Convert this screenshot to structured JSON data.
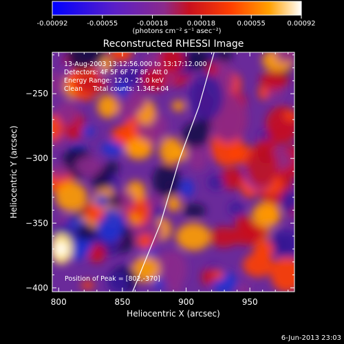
{
  "colorbar": {
    "tick_labels": [
      "-0.00092",
      "-0.00055",
      "-0.00018",
      "0.00018",
      "0.00055",
      "0.00092"
    ],
    "tick_values": [
      -0.00092,
      -0.00055,
      -0.00018,
      0.00018,
      0.00055,
      0.00092
    ],
    "range": [
      -0.00092,
      0.00092
    ],
    "units_label": "(photons cm⁻² s⁻¹ asec⁻²)",
    "colors": [
      "#0000ff",
      "#5a1fc8",
      "#8b2a8b",
      "#c8101e",
      "#ff4000",
      "#ffa000",
      "#ffffff"
    ]
  },
  "chart_data": {
    "type": "heatmap",
    "title": "Reconstructed RHESSI Image",
    "xlabel": "Heliocentric X (arcsec)",
    "ylabel": "Heliocentric Y (arcsec)",
    "xlim": [
      795,
      985
    ],
    "ylim": [
      -403,
      -218
    ],
    "x_ticks": [
      800,
      850,
      900,
      950
    ],
    "y_ticks": [
      -250,
      -300,
      -350,
      -400
    ],
    "x_tick_labels": [
      "800",
      "850",
      "900",
      "950"
    ],
    "y_tick_labels": [
      "-250",
      "-300",
      "-350",
      "-400"
    ],
    "annotations": [
      "13-Aug-2003 13:12:56.000 to 13:17:12.000",
      "Detectors: 4F 5F 6F 7F 8F, Att 0",
      "Energy Range: 12.0 - 25.0 keV",
      "Clean     Total counts: 1.34E+04"
    ],
    "peak_label": "Position of Peak = [802,-370]",
    "peak": [
      802,
      -370
    ],
    "limb_curve": [
      [
        858,
        -403
      ],
      [
        880,
        -350
      ],
      [
        895,
        -300
      ],
      [
        910,
        -260
      ],
      [
        922,
        -218
      ]
    ]
  },
  "footer": {
    "timestamp": "6-Jun-2013 23:03"
  }
}
